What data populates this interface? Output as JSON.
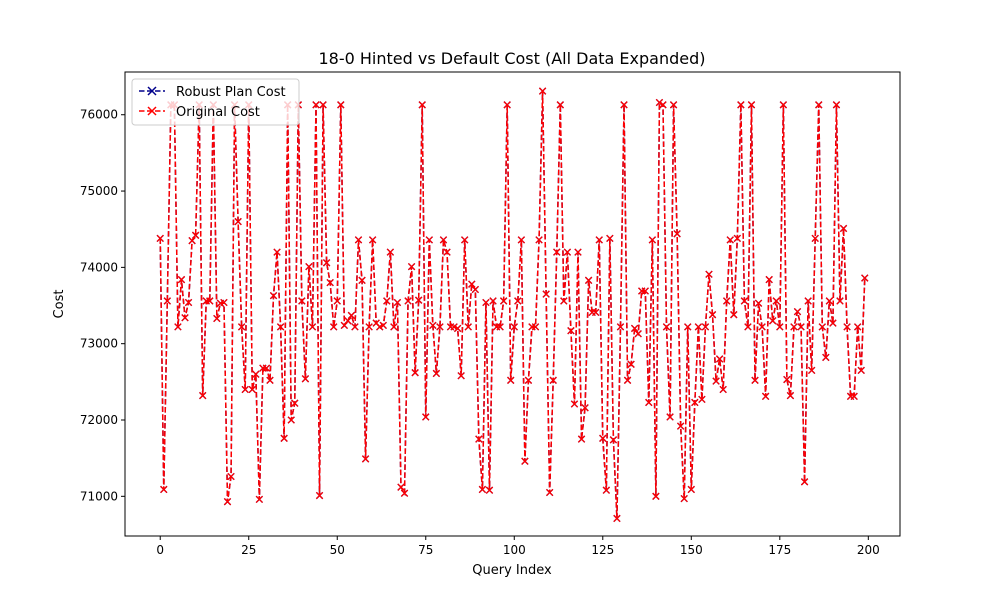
{
  "chart_data": {
    "type": "line",
    "title": "18-0 Hinted vs Default Cost (All Data Expanded)",
    "xlabel": "Query Index",
    "ylabel": "Cost",
    "xlim": [
      -9.95,
      208.95
    ],
    "ylim": [
      70480,
      76560
    ],
    "xticks": [
      0,
      25,
      50,
      75,
      100,
      125,
      150,
      175,
      200
    ],
    "yticks": [
      71000,
      72000,
      73000,
      74000,
      75000,
      76000
    ],
    "legend_position": "upper-left",
    "grid": false,
    "series": [
      {
        "name": "Robust Plan Cost",
        "color": "#00008b",
        "marker": "x",
        "linestyle": "dashed",
        "values": [
          74380,
          71090,
          73560,
          76130,
          76130,
          73220,
          73840,
          73340,
          73540,
          74350,
          74420,
          76130,
          72320,
          73560,
          73560,
          76130,
          73330,
          73530,
          73540,
          70930,
          71260,
          76130,
          74600,
          73220,
          72400,
          76130,
          72400,
          72600,
          70960,
          72680,
          72680,
          72520,
          73630,
          74200,
          73220,
          71760,
          76130,
          72000,
          72220,
          76130,
          73560,
          72540,
          74010,
          73220,
          76130,
          71010,
          76130,
          74060,
          73800,
          73220,
          73560,
          76130,
          73240,
          73300,
          73370,
          73220,
          74360,
          73830,
          71490,
          73220,
          74360,
          73270,
          73220,
          73240,
          73560,
          74200,
          73220,
          73540,
          71120,
          71040,
          73560,
          74010,
          72620,
          73570,
          76130,
          72040,
          74360,
          73240,
          72610,
          73220,
          74360,
          74200,
          73220,
          73220,
          73200,
          72580,
          74360,
          73220,
          73780,
          73710,
          71750,
          71090,
          73540,
          71080,
          73560,
          73220,
          73220,
          73560,
          76130,
          72520,
          73220,
          73560,
          74360,
          71460,
          72520,
          73220,
          73220,
          74360,
          76310,
          73650,
          71050,
          72520,
          74200,
          76130,
          73560,
          74200,
          73170,
          72210,
          74200,
          71750,
          72160,
          73830,
          73410,
          73410,
          74360,
          71760,
          71080,
          74380,
          71740,
          70710,
          73220,
          76130,
          72520,
          72730,
          73200,
          73130,
          73690,
          73690,
          72230,
          74360,
          71000,
          76160,
          76130,
          73220,
          72040,
          76130,
          74440,
          71920,
          70970,
          73220,
          71090,
          72230,
          73220,
          72270,
          73220,
          73910,
          73380,
          72510,
          72800,
          72400,
          73560,
          74360,
          73380,
          74380,
          76130,
          73560,
          73220,
          76130,
          72520,
          73530,
          73220,
          72310,
          73840,
          73300,
          73560,
          73220,
          76130,
          72530,
          72320,
          73220,
          73420,
          73220,
          71190,
          73560,
          72650,
          74380,
          76130,
          73220,
          72820,
          73560,
          73270,
          76130,
          73560,
          74510,
          73220,
          72310,
          72310,
          73220,
          72650,
          73860
        ]
      },
      {
        "name": "Original Cost",
        "color": "#ff0000",
        "marker": "x",
        "linestyle": "dashed",
        "values": [
          74380,
          71090,
          73560,
          76130,
          76130,
          73220,
          73840,
          73340,
          73540,
          74350,
          74420,
          76130,
          72320,
          73560,
          73560,
          76130,
          73330,
          73530,
          73540,
          70930,
          71260,
          76130,
          74600,
          73220,
          72400,
          76130,
          72400,
          72600,
          70960,
          72680,
          72680,
          72520,
          73630,
          74200,
          73220,
          71760,
          76130,
          72000,
          72220,
          76130,
          73560,
          72540,
          74010,
          73220,
          76130,
          71010,
          76130,
          74060,
          73800,
          73220,
          73560,
          76130,
          73240,
          73300,
          73370,
          73220,
          74360,
          73830,
          71490,
          73220,
          74360,
          73270,
          73220,
          73240,
          73560,
          74200,
          73220,
          73540,
          71120,
          71040,
          73560,
          74010,
          72620,
          73570,
          76130,
          72040,
          74360,
          73240,
          72610,
          73220,
          74360,
          74200,
          73220,
          73220,
          73200,
          72580,
          74360,
          73220,
          73780,
          73710,
          71750,
          71090,
          73540,
          71080,
          73560,
          73220,
          73220,
          73560,
          76130,
          72520,
          73220,
          73560,
          74360,
          71460,
          72520,
          73220,
          73220,
          74360,
          76310,
          73650,
          71050,
          72520,
          74200,
          76130,
          73560,
          74200,
          73170,
          72210,
          74200,
          71750,
          72160,
          73830,
          73410,
          73410,
          74360,
          71760,
          71080,
          74380,
          71740,
          70710,
          73220,
          76130,
          72520,
          72730,
          73200,
          73130,
          73690,
          73690,
          72230,
          74360,
          71000,
          76160,
          76130,
          73220,
          72040,
          76130,
          74440,
          71920,
          70970,
          73220,
          71090,
          72230,
          73220,
          72270,
          73220,
          73910,
          73380,
          72510,
          72800,
          72400,
          73560,
          74360,
          73380,
          74380,
          76130,
          73560,
          73220,
          76130,
          72520,
          73530,
          73220,
          72310,
          73840,
          73300,
          73560,
          73220,
          76130,
          72530,
          72320,
          73220,
          73420,
          73220,
          71190,
          73560,
          72650,
          74380,
          76130,
          73220,
          72820,
          73560,
          73270,
          76130,
          73560,
          74510,
          73220,
          72310,
          72310,
          73220,
          72650,
          73860
        ]
      }
    ]
  }
}
